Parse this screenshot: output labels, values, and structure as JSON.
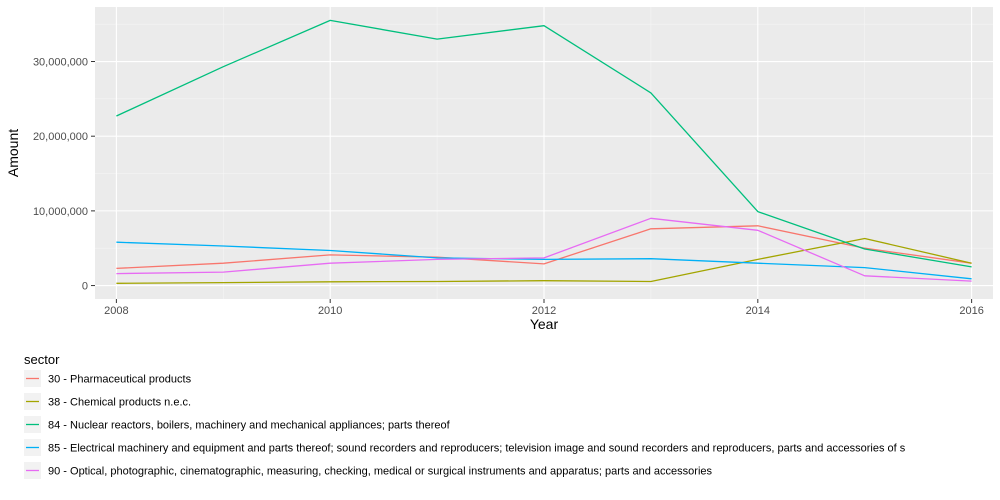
{
  "chart_data": {
    "type": "line",
    "xlabel": "Year",
    "ylabel": "Amount",
    "xlim": [
      2007.8,
      2016.2
    ],
    "ylim": [
      -1800000,
      37300000
    ],
    "x_ticks": [
      2008,
      2010,
      2012,
      2014,
      2016
    ],
    "x_tick_labels": [
      "2008",
      "2010",
      "2012",
      "2014",
      "2016"
    ],
    "y_ticks": [
      0,
      10000000,
      20000000,
      30000000
    ],
    "y_tick_labels": [
      "0",
      "10,000,000",
      "20,000,000",
      "30,000,000"
    ],
    "grid": true,
    "legend": {
      "title": "sector",
      "position": "bottom"
    },
    "x": [
      2008,
      2009,
      2010,
      2011,
      2012,
      2013,
      2014,
      2015,
      2016
    ],
    "series": [
      {
        "name": "30 - Pharmaceutical products",
        "color": "#F8766D",
        "values": [
          2300000,
          3000000,
          4100000,
          3800000,
          2900000,
          7600000,
          8000000,
          5000000,
          3000000
        ]
      },
      {
        "name": "38 - Chemical products n.e.c.",
        "color": "#A3A500",
        "values": [
          300000,
          400000,
          500000,
          550000,
          650000,
          550000,
          3500000,
          6300000,
          3000000
        ]
      },
      {
        "name": "84 - Nuclear reactors, boilers, machinery and mechanical appliances; parts thereof",
        "color": "#00BF7D",
        "values": [
          22700000,
          29300000,
          35500000,
          33000000,
          34800000,
          25800000,
          9900000,
          4900000,
          2500000
        ]
      },
      {
        "name": "85 - Electrical machinery and equipment and parts thereof; sound recorders and reproducers; television image and sound recorders and reproducers, parts and accessories of s",
        "color": "#00B0F6",
        "values": [
          5800000,
          5300000,
          4700000,
          3700000,
          3500000,
          3600000,
          3000000,
          2400000,
          900000
        ]
      },
      {
        "name": "90 - Optical, photographic, cinematographic, measuring, checking, medical or surgical instruments and apparatus; parts and accessories",
        "color": "#E76BF3",
        "values": [
          1600000,
          1800000,
          3000000,
          3500000,
          3700000,
          9000000,
          7400000,
          1300000,
          600000
        ]
      }
    ]
  }
}
